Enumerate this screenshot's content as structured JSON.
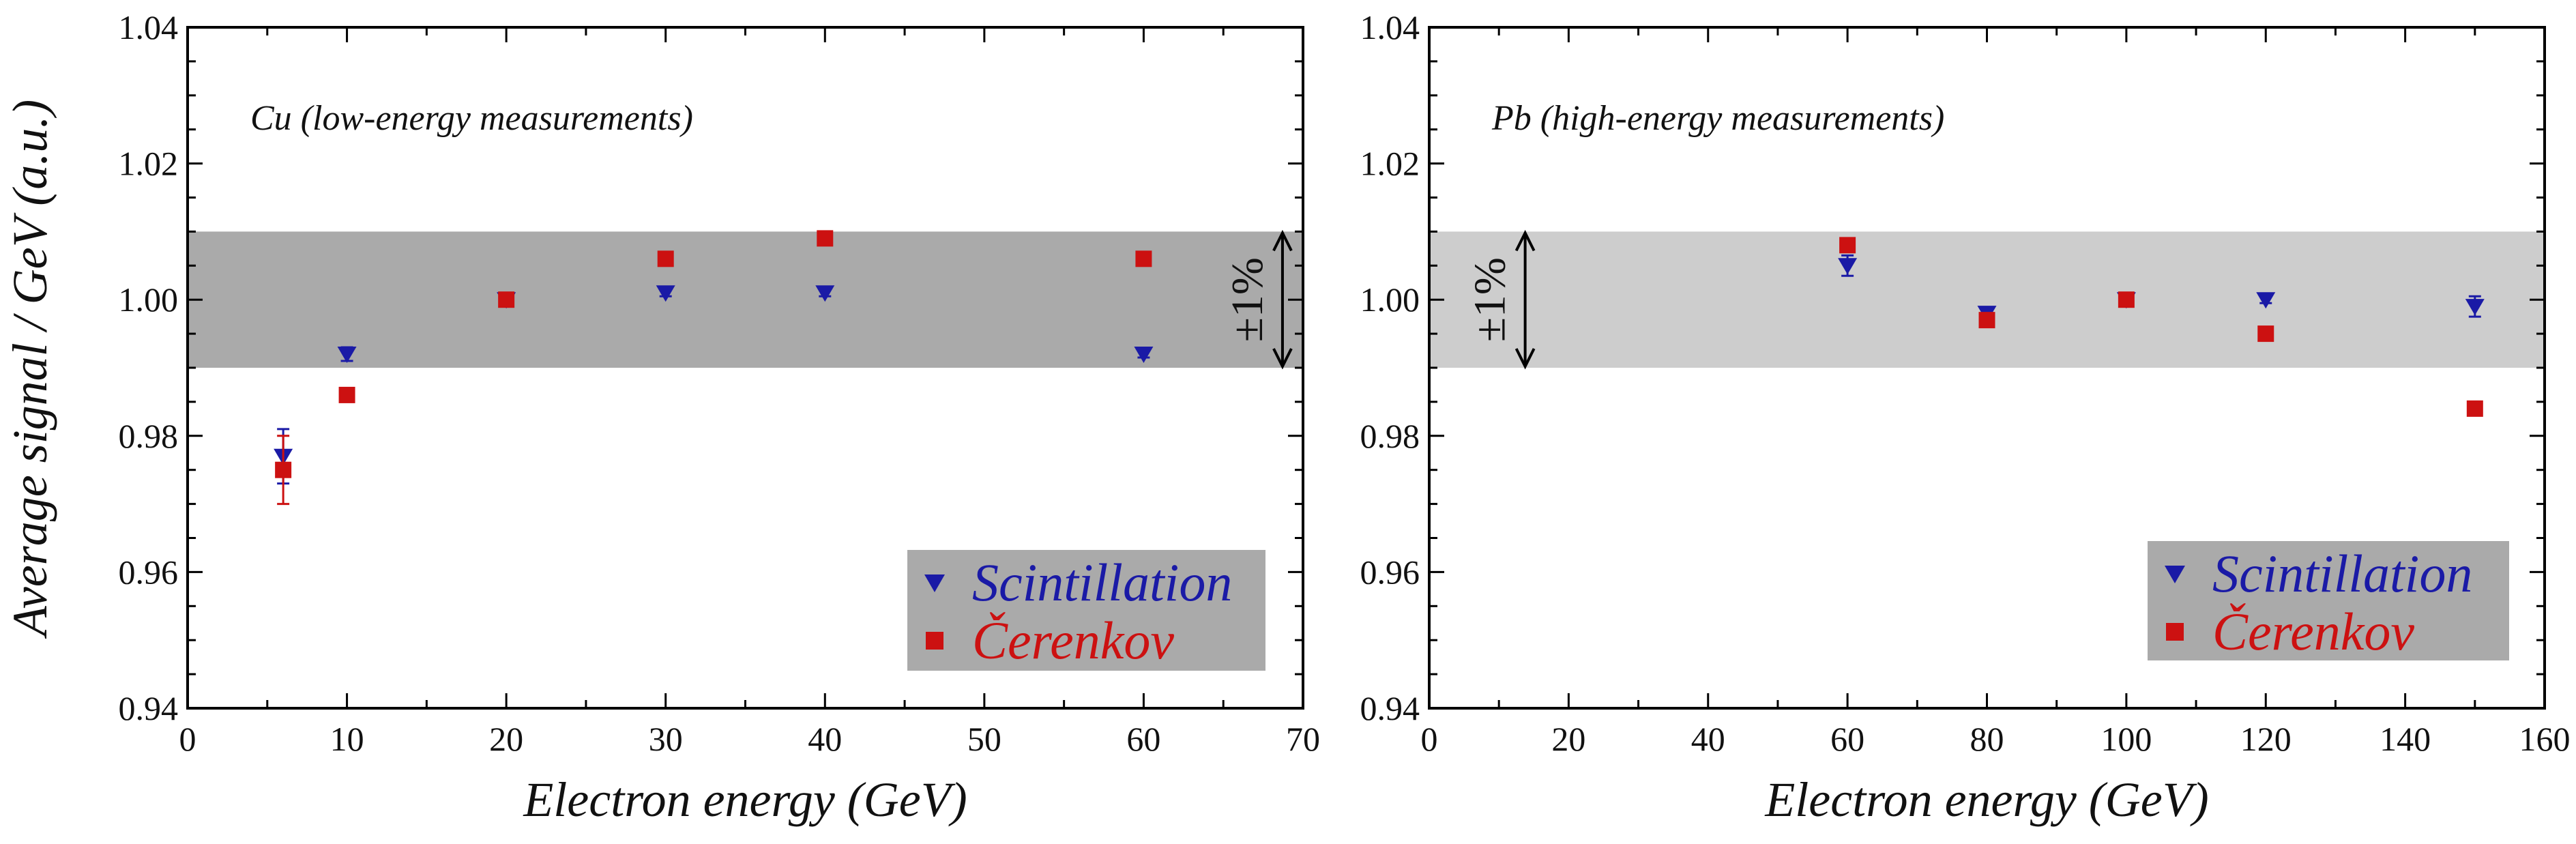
{
  "chart_data": [
    {
      "type": "scatter",
      "panel_label": "Cu (low-energy measurements)",
      "xlabel": "Electron energy (GeV)",
      "ylabel": "Average signal / GeV (a.u.)",
      "xlim": [
        0,
        70
      ],
      "ylim": [
        0.94,
        1.04
      ],
      "xticks": [
        0,
        10,
        20,
        30,
        40,
        50,
        60,
        70
      ],
      "yticks": [
        0.94,
        0.96,
        0.98,
        1.0,
        1.02,
        1.04
      ],
      "yticklabels": [
        "0.94",
        "0.96",
        "0.98",
        "1.00",
        "1.02",
        "1.04"
      ],
      "band": {
        "lower": 0.99,
        "upper": 1.01,
        "label": "±1%",
        "label_x": 67,
        "color": "#aaaaaa"
      },
      "legend_position": "bottom-right",
      "series": [
        {
          "name": "Scintillation",
          "marker": "triangle-down",
          "color": "#1a1aa6",
          "x": [
            6,
            10,
            20,
            30,
            40,
            60
          ],
          "y": [
            0.977,
            0.992,
            1.0,
            1.001,
            1.001,
            0.992
          ],
          "err": [
            0.004,
            0.001,
            0.0005,
            0.0005,
            0.0005,
            0.0005
          ]
        },
        {
          "name": "Čerenkov",
          "marker": "square",
          "color": "#cc1111",
          "x": [
            6,
            10,
            20,
            30,
            40,
            60
          ],
          "y": [
            0.975,
            0.986,
            1.0,
            1.006,
            1.009,
            1.006
          ],
          "err": [
            0.005,
            0.001,
            0.0005,
            0.0005,
            0.0005,
            0.0005
          ]
        }
      ]
    },
    {
      "type": "scatter",
      "panel_label": "Pb (high-energy measurements)",
      "xlabel": "Electron energy (GeV)",
      "ylabel": "",
      "xlim": [
        0,
        160
      ],
      "ylim": [
        0.94,
        1.04
      ],
      "xticks": [
        0,
        20,
        40,
        60,
        80,
        100,
        120,
        140,
        160
      ],
      "yticks": [
        0.94,
        0.96,
        0.98,
        1.0,
        1.02,
        1.04
      ],
      "yticklabels": [
        "0.94",
        "0.96",
        "0.98",
        "1.00",
        "1.02",
        "1.04"
      ],
      "band": {
        "lower": 0.99,
        "upper": 1.01,
        "label": "±1%",
        "label_x": 12,
        "color": "#cdcdcd"
      },
      "legend_position": "bottom-right",
      "series": [
        {
          "name": "Scintillation",
          "marker": "triangle-down",
          "color": "#1a1aa6",
          "x": [
            60,
            80,
            100,
            120,
            150
          ],
          "y": [
            1.005,
            0.998,
            1.0,
            1.0,
            0.999
          ],
          "err": [
            0.0015,
            0.0005,
            0.0005,
            0.0005,
            0.0015
          ]
        },
        {
          "name": "Čerenkov",
          "marker": "square",
          "color": "#cc1111",
          "x": [
            60,
            80,
            100,
            120,
            150
          ],
          "y": [
            1.008,
            0.997,
            1.0,
            0.995,
            0.984
          ],
          "err": [
            0.0005,
            0.0005,
            0.0005,
            0.0005,
            0.0005
          ]
        }
      ]
    }
  ]
}
